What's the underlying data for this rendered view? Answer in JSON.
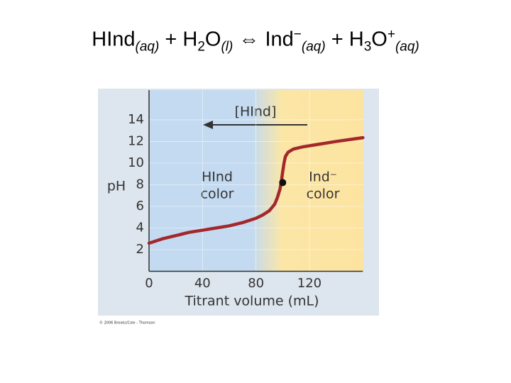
{
  "header": {
    "parts": [
      "HInd",
      "(aq)",
      " + H",
      "2",
      "O",
      "(l)",
      " ⇔ Ind",
      "−",
      "(aq)",
      " + H",
      "3",
      "O",
      "+",
      "(aq)"
    ]
  },
  "chart_data": {
    "type": "line",
    "x_label": "Titrant volume (mL)",
    "y_label": "pH",
    "x": [
      0,
      10,
      20,
      30,
      40,
      50,
      60,
      70,
      80,
      85,
      90,
      94,
      96,
      98,
      99,
      100,
      101,
      102,
      104,
      108,
      115,
      125,
      140,
      160
    ],
    "values": [
      2.6,
      3.0,
      3.3,
      3.6,
      3.8,
      4.0,
      4.2,
      4.5,
      4.9,
      5.2,
      5.6,
      6.2,
      6.8,
      7.6,
      8.3,
      9.2,
      10.0,
      10.6,
      11.0,
      11.3,
      11.5,
      11.7,
      12.0,
      12.35
    ],
    "color": "#a3282b",
    "marker": {
      "x": 100,
      "y": 8.2
    },
    "xlim": [
      0,
      160
    ],
    "ylim": [
      0,
      16.75
    ],
    "xticks": [
      0,
      40,
      80,
      120
    ],
    "yticks": [
      2,
      4,
      6,
      8,
      10,
      12,
      14
    ],
    "annotations": {
      "arrow_label": "[HInd]",
      "left_color": [
        "HInd",
        "color"
      ],
      "right_color": [
        "Ind⁻",
        "color"
      ]
    },
    "credit": "© 2006 Brooks/Cole - Thomson"
  }
}
